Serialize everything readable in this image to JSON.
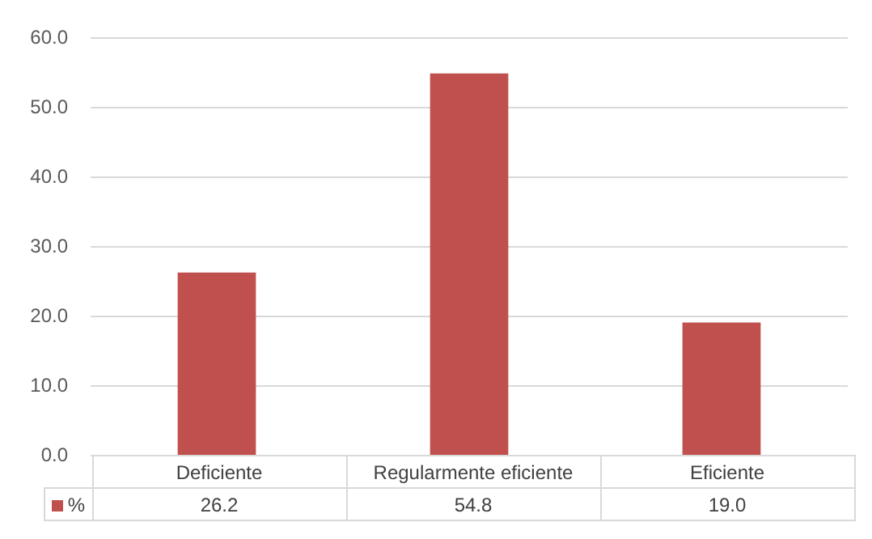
{
  "chart_data": {
    "type": "bar",
    "categories": [
      "Deficiente",
      "Regularmente eficiente",
      "Eficiente"
    ],
    "series": [
      {
        "name": "%",
        "color": "#c0504d",
        "values": [
          26.2,
          54.8,
          19.0
        ],
        "value_labels": [
          "26.2",
          "54.8",
          "19.0"
        ]
      }
    ],
    "ylim": [
      0,
      60
    ],
    "yticks": [
      {
        "value": 0,
        "label": "0.0"
      },
      {
        "value": 10,
        "label": "10.0"
      },
      {
        "value": 20,
        "label": "20.0"
      },
      {
        "value": 30,
        "label": "30.0"
      },
      {
        "value": 40,
        "label": "40.0"
      },
      {
        "value": 50,
        "label": "50.0"
      },
      {
        "value": 60,
        "label": "60.0"
      }
    ],
    "grid": "y",
    "legend": "bottom"
  }
}
